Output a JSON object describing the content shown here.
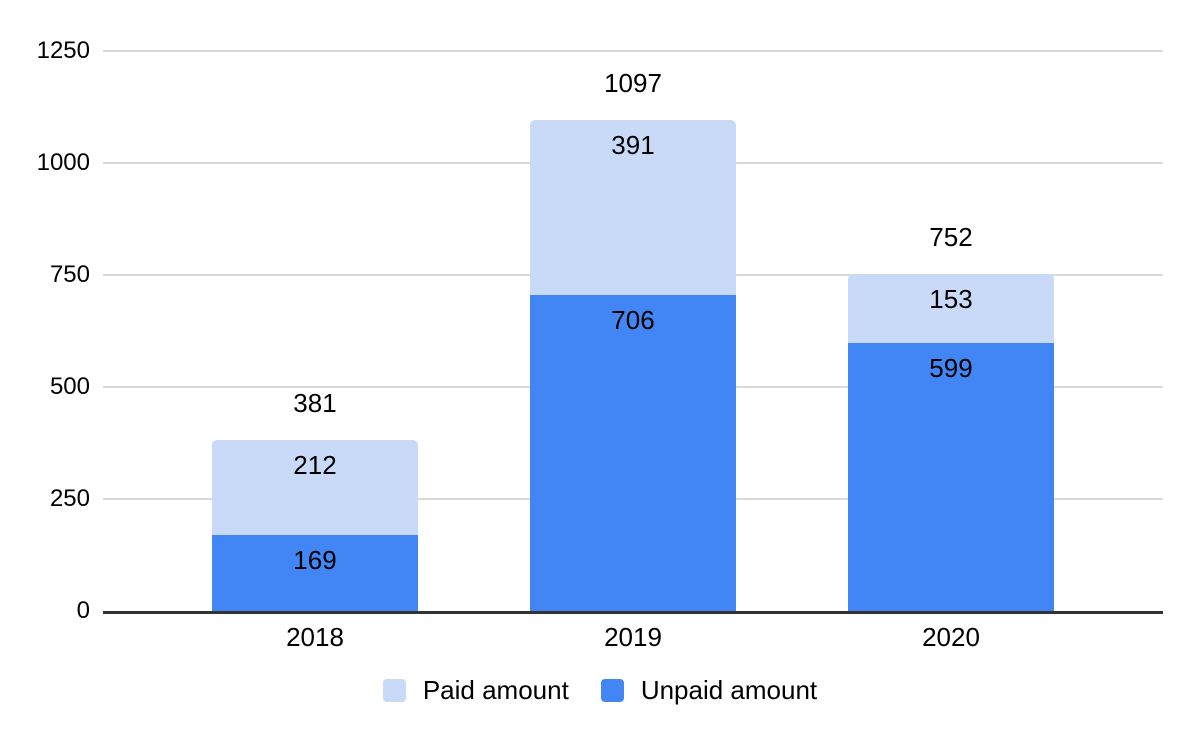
{
  "chart_data": {
    "type": "bar",
    "stacked": true,
    "title": "",
    "categories": [
      "2018",
      "2019",
      "2020"
    ],
    "series": [
      {
        "name": "Unpaid amount",
        "color": "#4285f4",
        "values": [
          169,
          706,
          599
        ]
      },
      {
        "name": "Paid amount",
        "color": "#c9daf8",
        "values": [
          212,
          391,
          153
        ]
      }
    ],
    "totals": [
      381,
      1097,
      752
    ],
    "yticks": [
      0,
      250,
      500,
      750,
      1000,
      1250
    ],
    "ylim": [
      0,
      1250
    ],
    "xlabel": "",
    "ylabel": "",
    "grid": true,
    "legend": {
      "position": "bottom",
      "items": [
        {
          "label": "Paid amount",
          "color": "#c9daf8"
        },
        {
          "label": "Unpaid amount",
          "color": "#4285f4"
        }
      ]
    },
    "colors": {
      "background": "#ffffff",
      "gridline": "#d9d9d9",
      "axis_line": "#333333",
      "text": "#000000"
    }
  }
}
